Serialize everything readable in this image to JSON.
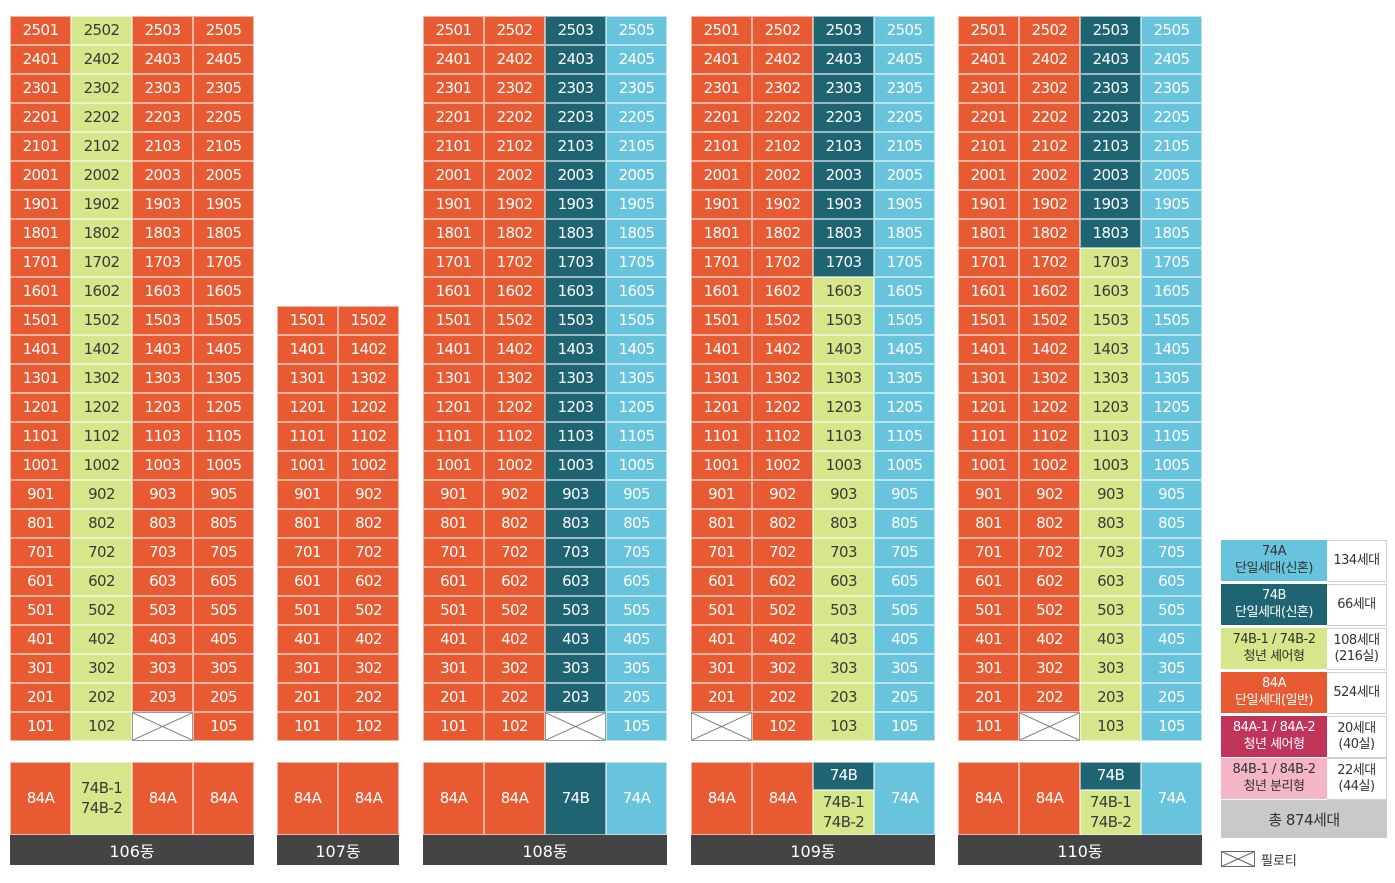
{
  "colors": {
    "orange": "#e85a32",
    "lime": "#d6e68a",
    "teal": "#1f6473",
    "cyan": "#68c4dc",
    "magenta": "#c0345a",
    "pink": "#f4b5c7",
    "total": "#c9c9c9",
    "building_bar": "#444444"
  },
  "buildings": [
    {
      "name": "106동",
      "max_floor": 25,
      "unit_nums": [
        "01",
        "02",
        "03",
        "05"
      ],
      "columns": [
        "o",
        "l",
        "o",
        "o"
      ],
      "overrides": {
        "103": "p"
      },
      "types": [
        {
          "lines": [
            "84A"
          ],
          "color": "o"
        },
        {
          "lines": [
            "74B-1",
            "74B-2"
          ],
          "color": "l"
        },
        {
          "lines": [
            "84A"
          ],
          "color": "o"
        },
        {
          "lines": [
            "84A"
          ],
          "color": "o"
        }
      ]
    },
    {
      "name": "107동",
      "max_floor": 15,
      "unit_nums": [
        "01",
        "02"
      ],
      "columns": [
        "o",
        "o"
      ],
      "overrides": {},
      "types": [
        {
          "lines": [
            "84A"
          ],
          "color": "o"
        },
        {
          "lines": [
            "84A"
          ],
          "color": "o"
        }
      ]
    },
    {
      "name": "108동",
      "max_floor": 25,
      "unit_nums": [
        "01",
        "02",
        "03",
        "05"
      ],
      "columns": [
        "o",
        "o",
        "d",
        "c"
      ],
      "overrides": {
        "103": "p"
      },
      "types": [
        {
          "lines": [
            "84A"
          ],
          "color": "o"
        },
        {
          "lines": [
            "84A"
          ],
          "color": "o"
        },
        {
          "lines": [
            "74B"
          ],
          "color": "d"
        },
        {
          "lines": [
            "74A"
          ],
          "color": "c"
        }
      ]
    },
    {
      "name": "109동",
      "max_floor": 25,
      "unit_nums": [
        "01",
        "02",
        "03",
        "05"
      ],
      "columns": [
        "o",
        "o",
        "l",
        "c"
      ],
      "col3_teal_from": 17,
      "overrides": {
        "101": "p"
      },
      "types": [
        {
          "lines": [
            "84A"
          ],
          "color": "o"
        },
        {
          "lines": [
            "84A"
          ],
          "color": "o"
        },
        {
          "split": true,
          "top": "74B",
          "bottom": [
            "74B-1",
            "74B-2"
          ]
        },
        {
          "lines": [
            "74A"
          ],
          "color": "c"
        }
      ]
    },
    {
      "name": "110동",
      "max_floor": 25,
      "unit_nums": [
        "01",
        "02",
        "03",
        "05"
      ],
      "columns": [
        "o",
        "o",
        "l",
        "c"
      ],
      "col3_teal_from": 18,
      "overrides": {
        "102": "p"
      },
      "types": [
        {
          "lines": [
            "84A"
          ],
          "color": "o"
        },
        {
          "lines": [
            "84A"
          ],
          "color": "o"
        },
        {
          "split": true,
          "top": "74B",
          "bottom": [
            "74B-1",
            "74B-2"
          ]
        },
        {
          "lines": [
            "74A"
          ],
          "color": "c"
        }
      ]
    }
  ],
  "legend": [
    {
      "type": "74A",
      "desc": "단일세대(신혼)",
      "count": "134세대",
      "count2": "",
      "swatch": "lg-cyan"
    },
    {
      "type": "74B",
      "desc": "단일세대(신혼)",
      "count": "66세대",
      "count2": "",
      "swatch": "lg-teal"
    },
    {
      "type": "74B-1 / 74B-2",
      "desc": "청년 셰어형",
      "count": "108세대",
      "count2": "(216실)",
      "swatch": "lg-lime"
    },
    {
      "type": "84A",
      "desc": "단일세대(일반)",
      "count": "524세대",
      "count2": "",
      "swatch": "lg-orange"
    },
    {
      "type": "84A-1 / 84A-2",
      "desc": "청년 셰어형",
      "count": "20세대",
      "count2": "(40실)",
      "swatch": "lg-mag"
    },
    {
      "type": "84B-1 / 84B-2",
      "desc": "청년 분리형",
      "count": "22세대",
      "count2": "(44실)",
      "swatch": "lg-pink"
    }
  ],
  "total_label": "총 874세대",
  "piloti_label": "필로티"
}
